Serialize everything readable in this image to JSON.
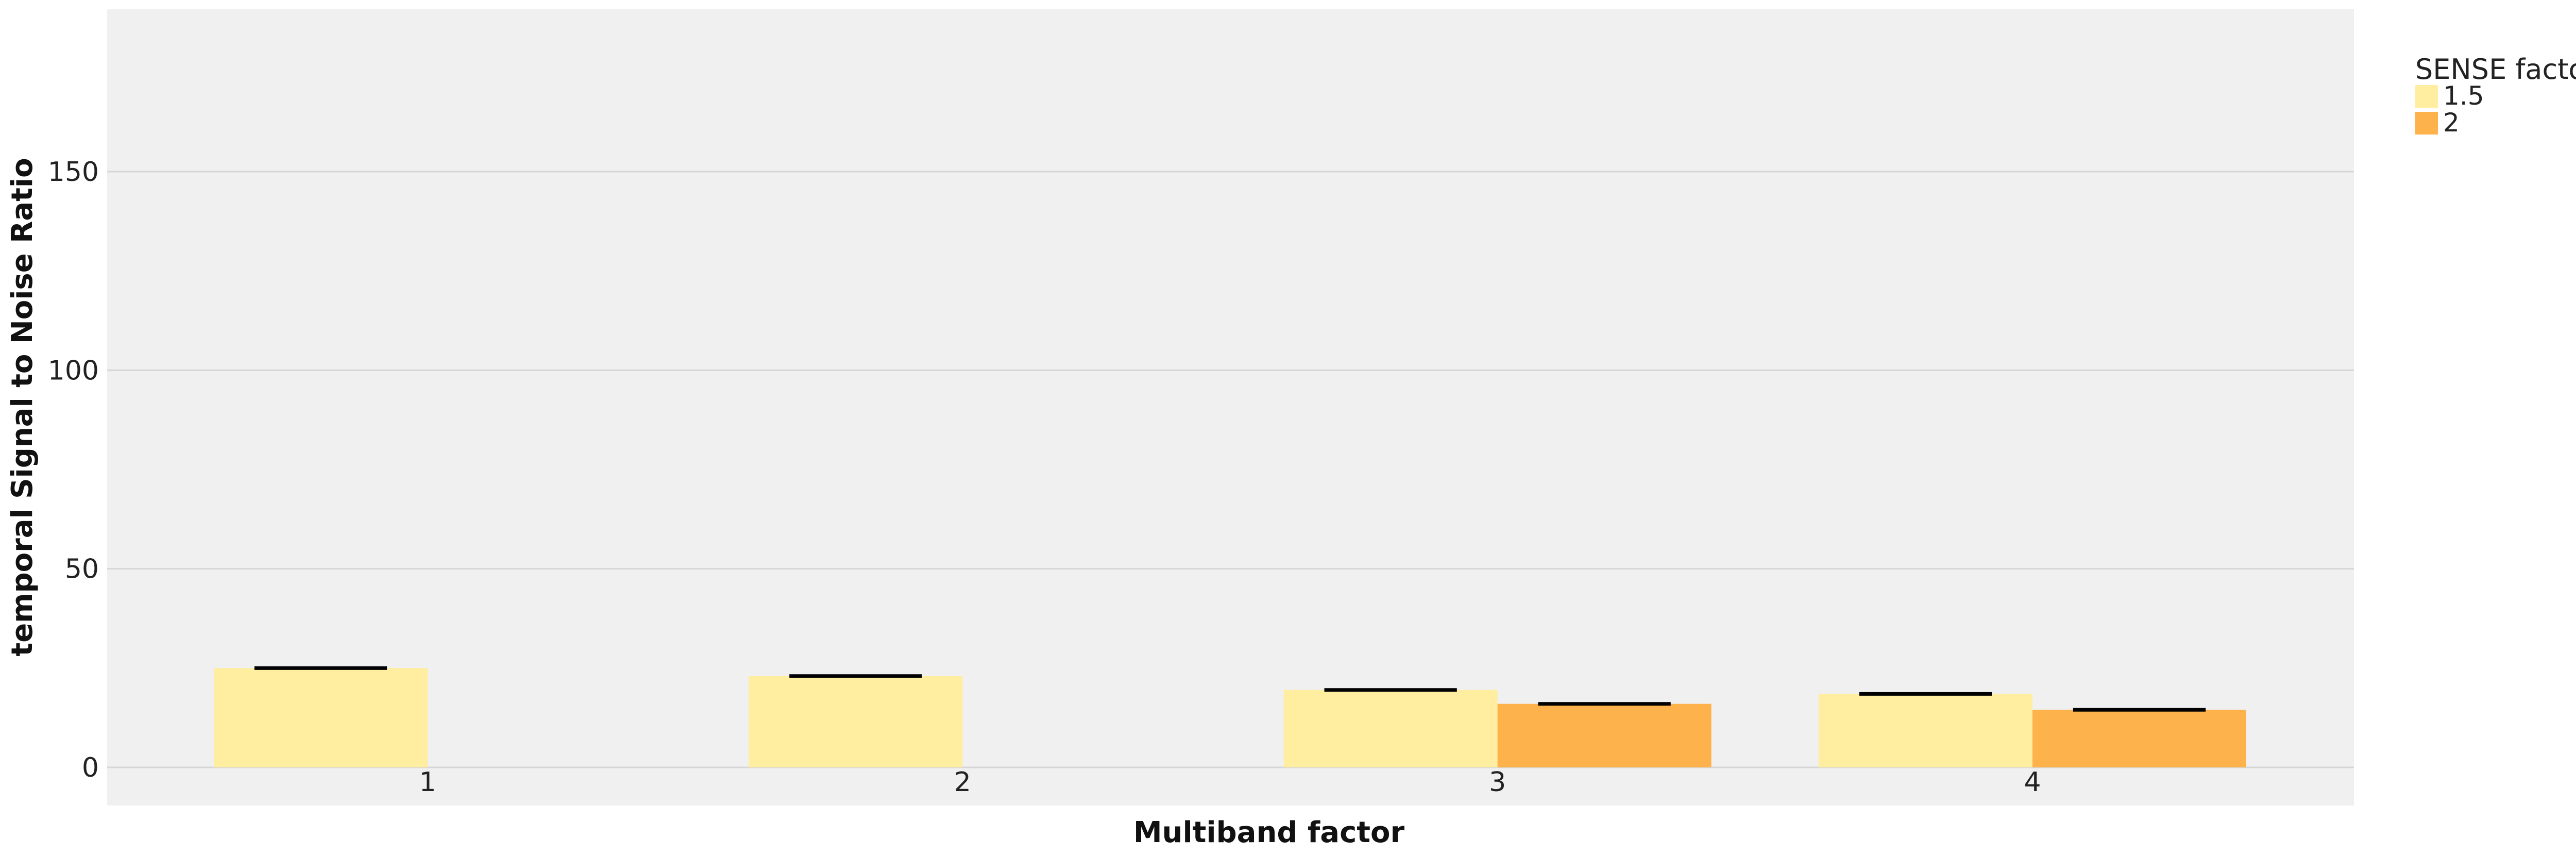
{
  "chart_data": {
    "type": "bar",
    "xlabel": "Multiband factor",
    "ylabel": "temporal Signal to Noise Ratio",
    "categories": [
      "1",
      "2",
      "3",
      "4"
    ],
    "series": [
      {
        "name": "1.5",
        "color": "#ffeda0",
        "values": [
          25,
          23,
          19.5,
          18.5
        ]
      },
      {
        "name": "2",
        "color": "#feb24c",
        "values": [
          null,
          null,
          16,
          14.5
        ]
      }
    ],
    "ylim": [
      -10,
      190
    ],
    "yticks": [
      0,
      50,
      100,
      150
    ],
    "grid": true,
    "legend": {
      "title": "SENSE factor",
      "placement": "right"
    },
    "colors": {
      "panel": "#f0f0f0",
      "grid": "#d6d6d6",
      "errorbar": "#000000"
    }
  }
}
